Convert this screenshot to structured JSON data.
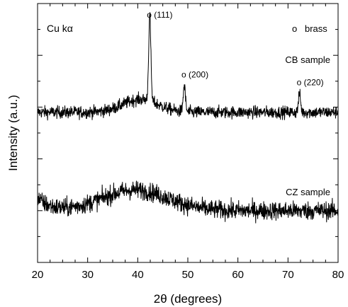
{
  "chart_data": {
    "type": "line",
    "xlabel": "2θ (degrees)",
    "ylabel": "Intensity (a.u.)",
    "xlim": [
      20,
      80
    ],
    "xticks": [
      20,
      30,
      40,
      50,
      60,
      70,
      80
    ],
    "y_tick_labels": "none",
    "grid": false,
    "radiation_label": "Cu kα",
    "legend": {
      "marker": "o",
      "label": "brass",
      "placement": "top-right"
    },
    "series": [
      {
        "name": "CB sample",
        "baseline": 0.58,
        "noise": 0.012,
        "broad_hump": {
          "center": 40.5,
          "width": 3.5,
          "height": 0.05
        },
        "peaks": [
          {
            "x": 42.4,
            "height": 0.33,
            "width": 0.22,
            "label": "o (111)"
          },
          {
            "x": 49.3,
            "height": 0.1,
            "width": 0.22,
            "label": "o (200)"
          },
          {
            "x": 72.3,
            "height": 0.07,
            "width": 0.22,
            "label": "o (220)"
          }
        ]
      },
      {
        "name": "CZ sample",
        "baseline": 0.2,
        "noise": 0.018,
        "start_offset": 0.05,
        "broad_hump": {
          "center": 39.5,
          "width": 6.5,
          "height": 0.08
        },
        "peaks": []
      }
    ]
  }
}
